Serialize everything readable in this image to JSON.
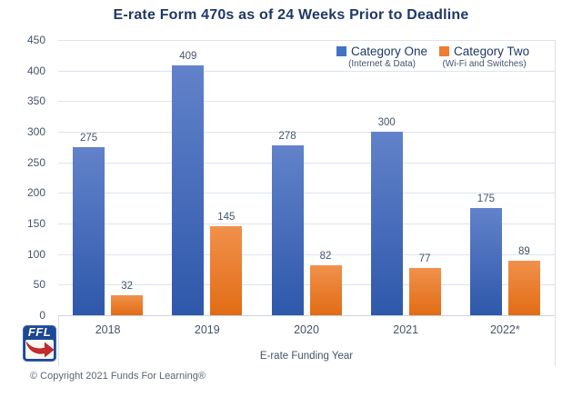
{
  "chart_data": {
    "type": "bar",
    "title": "E-rate Form 470s as of 24 Weeks Prior to Deadline",
    "xlabel": "E-rate Funding Year",
    "ylabel": "",
    "categories": [
      "2018",
      "2019",
      "2020",
      "2021",
      "2022*"
    ],
    "series": [
      {
        "name": "Category One",
        "subtitle": "(Internet & Data)",
        "color": "#4472C4",
        "gradient_top": "#6282CA",
        "gradient_bottom": "#2E58AB",
        "values": [
          275,
          409,
          278,
          300,
          175
        ]
      },
      {
        "name": "Category Two",
        "subtitle": "(Wi-Fi and Switches)",
        "color": "#ED7D31",
        "gradient_top": "#F0914B",
        "gradient_bottom": "#E26C15",
        "values": [
          32,
          145,
          82,
          77,
          89
        ]
      }
    ],
    "ylim": [
      0,
      450
    ],
    "yticks": [
      0,
      50,
      100,
      150,
      200,
      250,
      300,
      350,
      400,
      450
    ],
    "grid": true,
    "legend_position": "top-right",
    "data_labels": true
  },
  "logo": {
    "text": "FFL"
  },
  "footer": {
    "copyright": "© Copyright 2021 Funds For Learning®"
  },
  "colors": {
    "title": "#1F3864",
    "axis_text": "#44546A",
    "grid_line": "#DCE3EF",
    "axis_line": "#C9D3E0",
    "copyright_text": "#5A6472",
    "logo_blue": "#1B4899",
    "logo_red": "#C62B2B",
    "background": "#FFFFFF"
  }
}
